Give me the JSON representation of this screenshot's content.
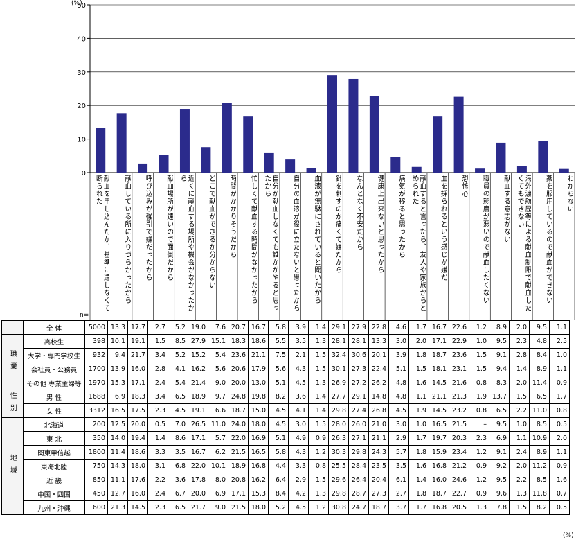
{
  "chart_data": {
    "type": "bar",
    "y_unit": "(%)",
    "ylim": [
      0,
      50
    ],
    "yticks": [
      0,
      10,
      20,
      30,
      40,
      50
    ],
    "n_label": "n=",
    "pct_label": "(%)",
    "categories": [
      "献血を申し込んだが、基準に達しなくて断られた",
      "献血している所に入りづらかったから",
      "呼び込みが強引で嫌だったから",
      "献血場所が遠いので面倒だから",
      "近くに献血する場所や機会がなかったから",
      "どこで献血ができるか分からない",
      "時間がかかりそうだから",
      "忙しくて献血する時間がなかったから",
      "自分が献血しなくても誰かがやると思ったから",
      "自分の血液が役に立たないと思ったから",
      "血液が無駄にされていると聞いたから",
      "針を刺すのが痛くて嫌だから",
      "なんとなく不安だから",
      "健康上出来ないと思ったから",
      "病気が移ると思ったから",
      "献血すると言ったら、友人や家族からとめられた",
      "血を採られるという感じが嫌だ",
      "恐怖心",
      "職員の態度が悪いので献血したくない",
      "献血する意志がない",
      "海外渡航歴等による献血制限で献血したくてもできない",
      "薬を服用しているので献血ができない",
      "わからない"
    ],
    "values": [
      13.3,
      17.7,
      2.7,
      5.2,
      19.0,
      7.6,
      20.7,
      16.7,
      5.8,
      3.9,
      1.4,
      29.1,
      27.9,
      22.8,
      4.6,
      1.7,
      16.7,
      22.6,
      1.2,
      8.9,
      2.0,
      9.5,
      1.1
    ],
    "bar_color": "#2b2b8c",
    "table": {
      "rows": [
        {
          "group": "",
          "label": "全  体",
          "n": "5000",
          "values": [
            "13.3",
            "17.7",
            "2.7",
            "5.2",
            "19.0",
            "7.6",
            "20.7",
            "16.7",
            "5.8",
            "3.9",
            "1.4",
            "29.1",
            "27.9",
            "22.8",
            "4.6",
            "1.7",
            "16.7",
            "22.6",
            "1.2",
            "8.9",
            "2.0",
            "9.5",
            "1.1"
          ]
        },
        {
          "group": "職業",
          "label": "高校生",
          "n": "398",
          "values": [
            "10.1",
            "19.1",
            "1.5",
            "8.5",
            "27.9",
            "15.1",
            "18.3",
            "18.6",
            "5.5",
            "3.5",
            "1.3",
            "28.1",
            "28.1",
            "13.3",
            "3.0",
            "2.0",
            "17.1",
            "22.9",
            "1.0",
            "9.5",
            "2.3",
            "4.8",
            "2.5"
          ]
        },
        {
          "group": "職業",
          "label": "大学・専門学校生",
          "n": "932",
          "values": [
            "9.4",
            "21.7",
            "3.4",
            "5.2",
            "15.2",
            "5.4",
            "23.6",
            "21.1",
            "7.5",
            "2.1",
            "1.5",
            "32.4",
            "30.6",
            "20.1",
            "3.9",
            "1.8",
            "18.7",
            "23.6",
            "1.5",
            "9.1",
            "2.8",
            "8.4",
            "1.0"
          ]
        },
        {
          "group": "職業",
          "label": "会社員・公務員",
          "n": "1700",
          "values": [
            "13.9",
            "16.0",
            "2.8",
            "4.1",
            "16.2",
            "5.6",
            "20.6",
            "17.9",
            "5.6",
            "4.3",
            "1.5",
            "30.1",
            "27.3",
            "22.4",
            "5.1",
            "1.5",
            "18.1",
            "23.1",
            "1.5",
            "9.4",
            "1.4",
            "8.9",
            "1.1"
          ]
        },
        {
          "group": "職業",
          "label": "その他 専業主婦等",
          "n": "1970",
          "values": [
            "15.3",
            "17.1",
            "2.4",
            "5.4",
            "21.4",
            "9.0",
            "20.0",
            "13.0",
            "5.1",
            "4.5",
            "1.3",
            "26.9",
            "27.2",
            "26.2",
            "4.8",
            "1.6",
            "14.5",
            "21.6",
            "0.8",
            "8.3",
            "2.0",
            "11.4",
            "0.9"
          ]
        },
        {
          "group": "性別",
          "label": "男  性",
          "n": "1688",
          "values": [
            "6.9",
            "18.3",
            "3.4",
            "6.5",
            "18.9",
            "9.7",
            "24.8",
            "19.8",
            "8.2",
            "3.6",
            "1.4",
            "27.7",
            "29.1",
            "14.8",
            "4.8",
            "1.1",
            "21.1",
            "21.3",
            "1.9",
            "13.7",
            "1.5",
            "6.5",
            "1.7"
          ]
        },
        {
          "group": "性別",
          "label": "女  性",
          "n": "3312",
          "values": [
            "16.5",
            "17.5",
            "2.3",
            "4.5",
            "19.1",
            "6.6",
            "18.7",
            "15.0",
            "4.5",
            "4.1",
            "1.4",
            "29.8",
            "27.4",
            "26.8",
            "4.5",
            "1.9",
            "14.5",
            "23.2",
            "0.8",
            "6.5",
            "2.2",
            "11.0",
            "0.8"
          ]
        },
        {
          "group": "地域",
          "label": "北海道",
          "n": "200",
          "values": [
            "12.5",
            "20.0",
            "0.5",
            "7.0",
            "26.5",
            "11.0",
            "24.0",
            "18.0",
            "4.5",
            "3.0",
            "1.5",
            "28.0",
            "26.0",
            "21.0",
            "3.0",
            "1.0",
            "16.5",
            "21.5",
            "–",
            "9.5",
            "1.0",
            "8.5",
            "0.5"
          ]
        },
        {
          "group": "地域",
          "label": "東  北",
          "n": "350",
          "values": [
            "14.0",
            "19.4",
            "1.4",
            "8.6",
            "17.1",
            "5.7",
            "22.0",
            "16.9",
            "5.1",
            "4.9",
            "0.9",
            "26.3",
            "27.1",
            "21.1",
            "2.9",
            "1.7",
            "19.7",
            "20.3",
            "2.3",
            "6.9",
            "1.1",
            "10.9",
            "2.0"
          ]
        },
        {
          "group": "地域",
          "label": "関東甲信越",
          "n": "1800",
          "values": [
            "11.4",
            "18.6",
            "3.3",
            "3.5",
            "16.7",
            "6.2",
            "21.5",
            "16.5",
            "5.8",
            "4.3",
            "1.2",
            "30.3",
            "29.8",
            "24.3",
            "5.7",
            "1.8",
            "15.9",
            "23.4",
            "1.2",
            "9.1",
            "2.4",
            "8.9",
            "1.1"
          ]
        },
        {
          "group": "地域",
          "label": "東海北陸",
          "n": "750",
          "values": [
            "14.3",
            "18.0",
            "3.1",
            "6.8",
            "22.0",
            "10.1",
            "18.9",
            "16.8",
            "4.4",
            "3.3",
            "0.8",
            "25.5",
            "28.4",
            "23.5",
            "3.5",
            "1.6",
            "16.8",
            "21.2",
            "0.9",
            "9.2",
            "2.0",
            "11.2",
            "0.9"
          ]
        },
        {
          "group": "地域",
          "label": "近  畿",
          "n": "850",
          "values": [
            "11.1",
            "17.6",
            "2.2",
            "3.6",
            "17.8",
            "8.0",
            "20.8",
            "16.2",
            "6.4",
            "2.9",
            "1.5",
            "29.6",
            "26.4",
            "20.4",
            "6.1",
            "1.4",
            "16.0",
            "24.6",
            "1.2",
            "9.5",
            "2.2",
            "8.5",
            "1.6"
          ]
        },
        {
          "group": "地域",
          "label": "中国・四国",
          "n": "450",
          "values": [
            "12.7",
            "16.0",
            "2.4",
            "6.7",
            "20.0",
            "6.9",
            "17.1",
            "15.3",
            "8.4",
            "4.2",
            "1.3",
            "29.8",
            "28.7",
            "27.3",
            "2.7",
            "1.8",
            "18.7",
            "22.7",
            "0.9",
            "9.6",
            "1.3",
            "11.8",
            "0.7"
          ]
        },
        {
          "group": "地域",
          "label": "九州・沖縄",
          "n": "600",
          "values": [
            "21.3",
            "14.5",
            "2.3",
            "6.5",
            "21.7",
            "9.0",
            "21.5",
            "18.0",
            "5.2",
            "4.5",
            "1.2",
            "30.8",
            "24.7",
            "18.7",
            "3.7",
            "1.7",
            "16.8",
            "20.5",
            "1.3",
            "7.8",
            "1.5",
            "8.2",
            "0.5"
          ]
        }
      ]
    }
  }
}
